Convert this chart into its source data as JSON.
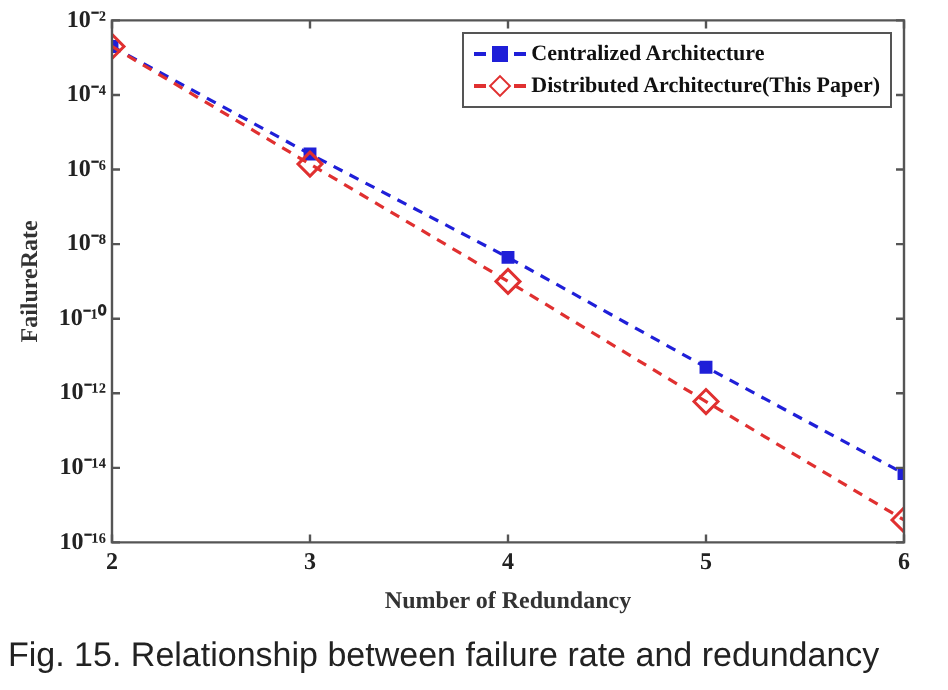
{
  "chart_data": {
    "type": "line",
    "xlabel": "Number of Redundancy",
    "ylabel": "FailureRate",
    "annotations": [
      "Fig. 15. Relationship between failure rate and redundancy"
    ],
    "x": [
      2,
      3,
      4,
      5,
      6
    ],
    "series": [
      {
        "name": "Centralized Architecture",
        "color": "#1f1fd8",
        "marker": "square",
        "values": [
          0.002,
          2.6e-06,
          4.4e-09,
          5e-12,
          7e-15
        ]
      },
      {
        "name": "Distributed Architecture(This Paper)",
        "color": "#e03030",
        "marker": "diamond",
        "values": [
          0.002,
          1.4e-06,
          1e-09,
          6e-13,
          4e-16
        ]
      }
    ],
    "log": "y",
    "xlim": [
      2,
      6
    ],
    "xticks": [
      2,
      3,
      4,
      5,
      6
    ],
    "ylim": [
      1e-16,
      0.01
    ],
    "yticks": [
      {
        "value": 1e-16,
        "label": "10⁻¹⁶"
      },
      {
        "value": 1e-14,
        "label": "10⁻¹⁴"
      },
      {
        "value": 1e-12,
        "label": "10⁻¹²"
      },
      {
        "value": 1e-10,
        "label": "10⁻¹⁰"
      },
      {
        "value": 1e-08,
        "label": "10⁻⁸"
      },
      {
        "value": 1e-06,
        "label": "10⁻⁶"
      },
      {
        "value": 0.0001,
        "label": "10⁻⁴"
      },
      {
        "value": 0.01,
        "label": "10⁻²"
      }
    ],
    "legend": "top right",
    "line_style": "dashed",
    "grid": false
  }
}
